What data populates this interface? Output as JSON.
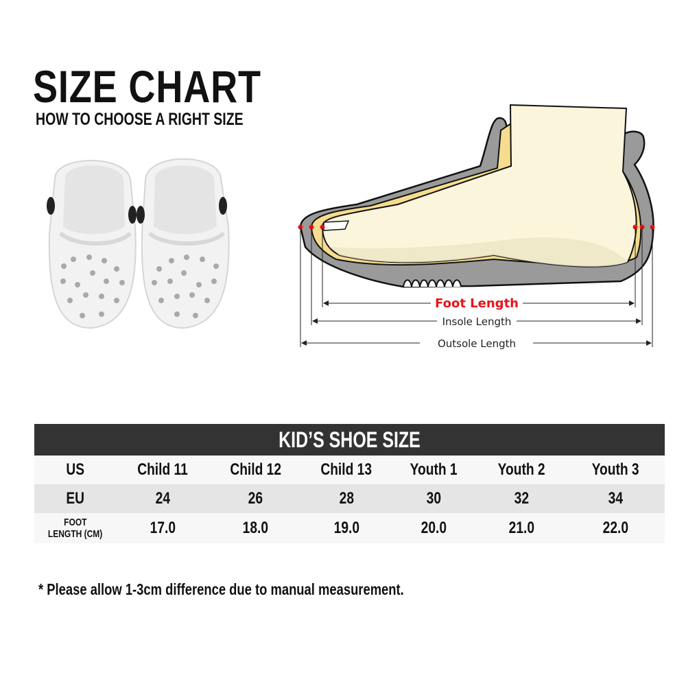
{
  "header": {
    "title": "SIZE CHART",
    "subtitle": "HOW TO CHOOSE A RIGHT SIZE"
  },
  "diagram": {
    "foot_length_label": "Foot Length",
    "insole_length_label": "Insole Length",
    "outsole_length_label": "Outsole Length",
    "colors": {
      "marker": "#e8141b",
      "sole": "#9a9a9a",
      "insole": "#f5dc8e",
      "foot": "#fbf5dc"
    }
  },
  "table": {
    "title": "KID’S SHOE SIZE",
    "rows": [
      {
        "label": "US",
        "values": [
          "Child 11",
          "Child 12",
          "Child 13",
          "Youth 1",
          "Youth 2",
          "Youth 3"
        ]
      },
      {
        "label": "EU",
        "values": [
          "24",
          "26",
          "28",
          "30",
          "32",
          "34"
        ]
      },
      {
        "label_line1": "FOOT",
        "label_line2": "LENGTH (CM)",
        "values": [
          "17.0",
          "18.0",
          "19.0",
          "20.0",
          "21.0",
          "22.0"
        ]
      }
    ]
  },
  "note": "* Please allow 1-3cm difference due to manual measurement."
}
